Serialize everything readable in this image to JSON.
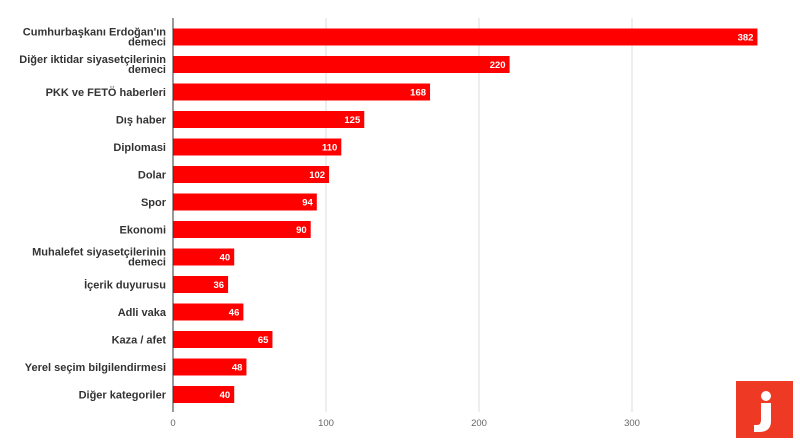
{
  "chart_data": {
    "type": "bar",
    "orientation": "horizontal",
    "categories": [
      [
        "Cumhurbaşkanı Erdoğan'ın",
        "demeci"
      ],
      [
        "Diğer iktidar siyasetçilerinin",
        "demeci"
      ],
      [
        "PKK ve FETÖ haberleri"
      ],
      [
        "Dış haber"
      ],
      [
        "Diplomasi"
      ],
      [
        "Dolar"
      ],
      [
        "Spor"
      ],
      [
        "Ekonomi"
      ],
      [
        "Muhalefet siyasetçilerinin",
        "demeci"
      ],
      [
        "İçerik duyurusu"
      ],
      [
        "Adli vaka"
      ],
      [
        "Kaza / afet"
      ],
      [
        "Yerel seçim bilgilendirmesi"
      ],
      [
        "Diğer kategoriler"
      ]
    ],
    "values": [
      382,
      220,
      168,
      125,
      110,
      102,
      94,
      90,
      40,
      36,
      46,
      65,
      48,
      40
    ],
    "value_labels": [
      "382",
      "220",
      "168",
      "125",
      "110",
      "102",
      "94",
      "90",
      "40",
      "36",
      "46",
      "65",
      "48",
      "40"
    ],
    "xlim": [
      0,
      400
    ],
    "x_ticks": [
      "0",
      "100",
      "200",
      "300"
    ],
    "grid": true,
    "bar_color": "#ff0000"
  },
  "logo": {
    "text": "j",
    "color": "#ee3a24",
    "icon": "j-logo-icon"
  }
}
